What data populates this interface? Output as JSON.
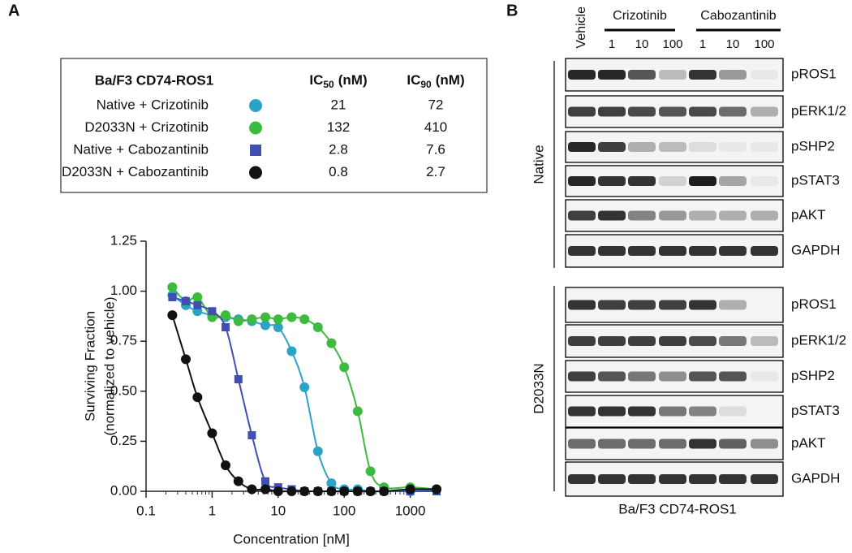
{
  "panel_a": {
    "label": "A",
    "table": {
      "title": "Ba/F3 CD74-ROS1",
      "columns": [
        {
          "text": "IC",
          "sub": "50",
          "unit": "(nM)"
        },
        {
          "text": "IC",
          "sub": "90",
          "unit": "(nM)"
        }
      ]
    }
  },
  "chart_data": {
    "type": "scatter",
    "xlabel": "Concentration [nM]",
    "ylabel": [
      "Surviving Fraction",
      "(normalized to vehicle)"
    ],
    "xscale": "log",
    "grid": false,
    "xlim": [
      0.1,
      2500
    ],
    "xticks": [
      0.1,
      1,
      10,
      100,
      1000
    ],
    "ylim": [
      0,
      1.25
    ],
    "yticks": [
      {
        "value": 0,
        "label": "0.00"
      },
      0.25,
      {
        "value": 0.5,
        "label": "0.50"
      },
      0.75,
      {
        "value": 1,
        "label": "1.00"
      },
      1.25
    ],
    "x": [
      0.25,
      0.4,
      0.6,
      1,
      1.6,
      2.5,
      4,
      6.4,
      10,
      16,
      25,
      40,
      64,
      100,
      160,
      250,
      400,
      1000,
      2500
    ],
    "series": [
      {
        "name": "Native + Crizotinib",
        "color": "#2ba3c6",
        "marker": "circle",
        "ic50": 21,
        "ic90": 72,
        "values": [
          0.98,
          0.93,
          0.9,
          0.88,
          0.87,
          0.86,
          0.85,
          0.83,
          0.82,
          0.7,
          0.52,
          0.2,
          0.04,
          0.01,
          0.01,
          0,
          0,
          0,
          0.01
        ]
      },
      {
        "name": "D2033N + Crizotinib",
        "color": "#3dbb3f",
        "marker": "circle",
        "ic50": 132,
        "ic90": 410,
        "values": [
          1.02,
          0.95,
          0.97,
          0.87,
          0.88,
          0.85,
          0.86,
          0.87,
          0.86,
          0.87,
          0.86,
          0.82,
          0.74,
          0.62,
          0.4,
          0.1,
          0.02,
          0.02,
          0.01
        ]
      },
      {
        "name": "Native + Cabozantinib",
        "color": "#3f4fb3",
        "marker": "square",
        "ic50": 2.8,
        "ic90": 7.6,
        "values": [
          0.97,
          0.95,
          0.93,
          0.9,
          0.82,
          0.56,
          0.28,
          0.05,
          0.02,
          0.01,
          0,
          0,
          0,
          0,
          0,
          0,
          0,
          0,
          0
        ]
      },
      {
        "name": "D2033N + Cabozantinib",
        "color": "#111111",
        "marker": "circle",
        "ic50": 0.8,
        "ic90": 2.7,
        "values": [
          0.88,
          0.66,
          0.47,
          0.29,
          0.13,
          0.05,
          0.01,
          0.01,
          0,
          0,
          0,
          0,
          0,
          0,
          0,
          0,
          0,
          0.01,
          0.01
        ]
      }
    ]
  },
  "panel_b": {
    "label": "B",
    "vehicle": "Vehicle",
    "groups": [
      {
        "name": "Crizotinib",
        "doses": [
          "1",
          "10",
          "100"
        ]
      },
      {
        "name": "Cabozantinib",
        "doses": [
          "1",
          "10",
          "100"
        ]
      }
    ],
    "sections": [
      {
        "name": "Native",
        "blots": [
          "pROS1",
          "pERK1/2",
          "pSHP2",
          "pSTAT3",
          "pAKT",
          "GAPDH"
        ]
      },
      {
        "name": "D2033N",
        "blots": [
          "pROS1",
          "pERK1/2",
          "pSHP2",
          "pSTAT3",
          "pAKT",
          "GAPDH"
        ]
      }
    ],
    "caption": "Ba/F3 CD74-ROS1"
  }
}
